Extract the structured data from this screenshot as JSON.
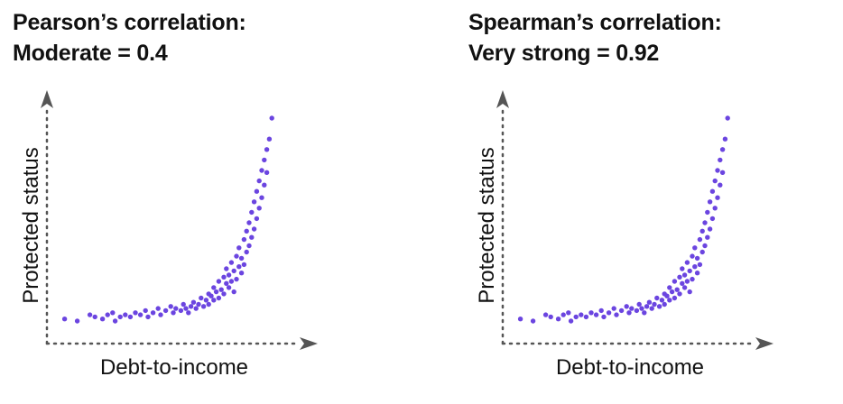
{
  "colors": {
    "points": "#6b45e0",
    "axis": "#555555",
    "text": "#111111"
  },
  "chart_data": [
    {
      "type": "scatter",
      "title_line1": "Pearson’s correlation:",
      "title_line2": "Moderate = 0.4",
      "xlabel": "Debt-to-income",
      "ylabel": "Protected status",
      "xlim": [
        0,
        1
      ],
      "ylim": [
        0,
        1
      ],
      "grid": false,
      "points": [
        [
          0.07,
          0.04
        ],
        [
          0.12,
          0.03
        ],
        [
          0.17,
          0.06
        ],
        [
          0.19,
          0.05
        ],
        [
          0.22,
          0.04
        ],
        [
          0.24,
          0.06
        ],
        [
          0.26,
          0.07
        ],
        [
          0.27,
          0.03
        ],
        [
          0.29,
          0.05
        ],
        [
          0.31,
          0.06
        ],
        [
          0.33,
          0.05
        ],
        [
          0.35,
          0.07
        ],
        [
          0.37,
          0.06
        ],
        [
          0.39,
          0.08
        ],
        [
          0.4,
          0.05
        ],
        [
          0.42,
          0.07
        ],
        [
          0.44,
          0.09
        ],
        [
          0.45,
          0.06
        ],
        [
          0.47,
          0.08
        ],
        [
          0.49,
          0.1
        ],
        [
          0.5,
          0.07
        ],
        [
          0.51,
          0.09
        ],
        [
          0.53,
          0.08
        ],
        [
          0.54,
          0.11
        ],
        [
          0.55,
          0.09
        ],
        [
          0.56,
          0.07
        ],
        [
          0.57,
          0.1
        ],
        [
          0.58,
          0.12
        ],
        [
          0.59,
          0.09
        ],
        [
          0.6,
          0.11
        ],
        [
          0.61,
          0.14
        ],
        [
          0.62,
          0.1
        ],
        [
          0.63,
          0.13
        ],
        [
          0.64,
          0.16
        ],
        [
          0.64,
          0.11
        ],
        [
          0.65,
          0.15
        ],
        [
          0.66,
          0.19
        ],
        [
          0.66,
          0.13
        ],
        [
          0.67,
          0.17
        ],
        [
          0.68,
          0.22
        ],
        [
          0.68,
          0.14
        ],
        [
          0.69,
          0.18
        ],
        [
          0.7,
          0.24
        ],
        [
          0.7,
          0.16
        ],
        [
          0.71,
          0.21
        ],
        [
          0.71,
          0.28
        ],
        [
          0.72,
          0.19
        ],
        [
          0.72,
          0.25
        ],
        [
          0.73,
          0.31
        ],
        [
          0.73,
          0.22
        ],
        [
          0.74,
          0.17
        ],
        [
          0.74,
          0.27
        ],
        [
          0.75,
          0.34
        ],
        [
          0.75,
          0.23
        ],
        [
          0.76,
          0.29
        ],
        [
          0.76,
          0.38
        ],
        [
          0.77,
          0.26
        ],
        [
          0.77,
          0.33
        ],
        [
          0.78,
          0.42
        ],
        [
          0.78,
          0.3
        ],
        [
          0.79,
          0.36
        ],
        [
          0.79,
          0.46
        ],
        [
          0.8,
          0.39
        ],
        [
          0.8,
          0.5
        ],
        [
          0.81,
          0.43
        ],
        [
          0.81,
          0.55
        ],
        [
          0.82,
          0.47
        ],
        [
          0.82,
          0.6
        ],
        [
          0.83,
          0.52
        ],
        [
          0.83,
          0.65
        ],
        [
          0.84,
          0.57
        ],
        [
          0.84,
          0.7
        ],
        [
          0.85,
          0.62
        ],
        [
          0.85,
          0.75
        ],
        [
          0.86,
          0.68
        ],
        [
          0.86,
          0.8
        ],
        [
          0.87,
          0.74
        ],
        [
          0.87,
          0.85
        ],
        [
          0.88,
          0.9
        ],
        [
          0.89,
          1.0
        ]
      ]
    },
    {
      "type": "scatter",
      "title_line1": "Spearman’s correlation:",
      "title_line2": "Very strong = 0.92",
      "xlabel": "Debt-to-income",
      "ylabel": "Protected status",
      "xlim": [
        0,
        1
      ],
      "ylim": [
        0,
        1
      ],
      "grid": false,
      "points": [
        [
          0.07,
          0.04
        ],
        [
          0.12,
          0.03
        ],
        [
          0.17,
          0.06
        ],
        [
          0.19,
          0.05
        ],
        [
          0.22,
          0.04
        ],
        [
          0.24,
          0.06
        ],
        [
          0.26,
          0.07
        ],
        [
          0.27,
          0.03
        ],
        [
          0.29,
          0.05
        ],
        [
          0.31,
          0.06
        ],
        [
          0.33,
          0.05
        ],
        [
          0.35,
          0.07
        ],
        [
          0.37,
          0.06
        ],
        [
          0.39,
          0.08
        ],
        [
          0.4,
          0.05
        ],
        [
          0.42,
          0.07
        ],
        [
          0.44,
          0.09
        ],
        [
          0.45,
          0.06
        ],
        [
          0.47,
          0.08
        ],
        [
          0.49,
          0.1
        ],
        [
          0.5,
          0.07
        ],
        [
          0.51,
          0.09
        ],
        [
          0.53,
          0.08
        ],
        [
          0.54,
          0.11
        ],
        [
          0.55,
          0.09
        ],
        [
          0.56,
          0.07
        ],
        [
          0.57,
          0.1
        ],
        [
          0.58,
          0.12
        ],
        [
          0.59,
          0.09
        ],
        [
          0.6,
          0.11
        ],
        [
          0.61,
          0.14
        ],
        [
          0.62,
          0.1
        ],
        [
          0.63,
          0.13
        ],
        [
          0.64,
          0.16
        ],
        [
          0.64,
          0.11
        ],
        [
          0.65,
          0.15
        ],
        [
          0.66,
          0.19
        ],
        [
          0.66,
          0.13
        ],
        [
          0.67,
          0.17
        ],
        [
          0.68,
          0.22
        ],
        [
          0.68,
          0.14
        ],
        [
          0.69,
          0.18
        ],
        [
          0.7,
          0.24
        ],
        [
          0.7,
          0.16
        ],
        [
          0.71,
          0.21
        ],
        [
          0.71,
          0.28
        ],
        [
          0.72,
          0.19
        ],
        [
          0.72,
          0.25
        ],
        [
          0.73,
          0.31
        ],
        [
          0.73,
          0.22
        ],
        [
          0.74,
          0.17
        ],
        [
          0.74,
          0.27
        ],
        [
          0.75,
          0.34
        ],
        [
          0.75,
          0.23
        ],
        [
          0.76,
          0.29
        ],
        [
          0.76,
          0.38
        ],
        [
          0.77,
          0.26
        ],
        [
          0.77,
          0.33
        ],
        [
          0.78,
          0.42
        ],
        [
          0.78,
          0.3
        ],
        [
          0.79,
          0.36
        ],
        [
          0.79,
          0.46
        ],
        [
          0.8,
          0.39
        ],
        [
          0.8,
          0.5
        ],
        [
          0.81,
          0.43
        ],
        [
          0.81,
          0.55
        ],
        [
          0.82,
          0.47
        ],
        [
          0.82,
          0.6
        ],
        [
          0.83,
          0.52
        ],
        [
          0.83,
          0.65
        ],
        [
          0.84,
          0.57
        ],
        [
          0.84,
          0.7
        ],
        [
          0.85,
          0.62
        ],
        [
          0.85,
          0.75
        ],
        [
          0.86,
          0.68
        ],
        [
          0.86,
          0.8
        ],
        [
          0.87,
          0.74
        ],
        [
          0.87,
          0.85
        ],
        [
          0.88,
          0.9
        ],
        [
          0.89,
          1.0
        ]
      ]
    }
  ]
}
